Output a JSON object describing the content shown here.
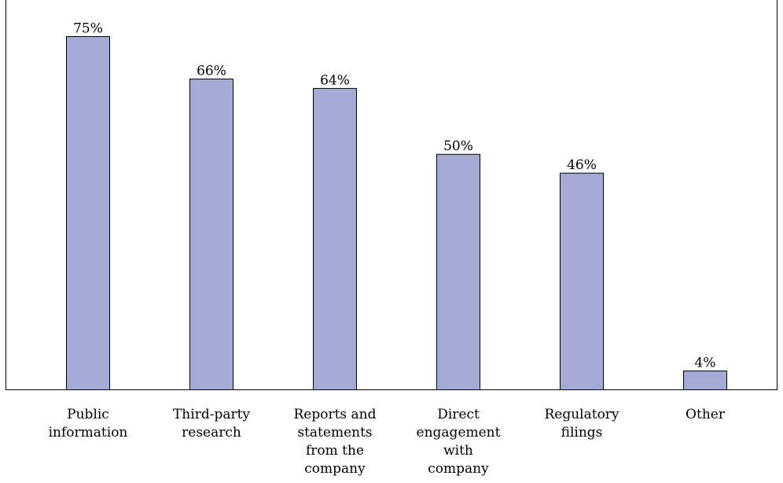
{
  "chart_data": {
    "type": "bar",
    "categories": [
      [
        "Public",
        "information"
      ],
      [
        "Third-party",
        "research"
      ],
      [
        "Reports and",
        "statements",
        "from the",
        "company"
      ],
      [
        "Direct",
        "engagement",
        "with",
        "company"
      ],
      [
        "Regulatory",
        "filings"
      ],
      [
        "Other"
      ]
    ],
    "values": [
      75,
      66,
      64,
      50,
      46,
      4
    ],
    "data_labels": [
      "75%",
      "66%",
      "64%",
      "50%",
      "46%",
      "4%"
    ],
    "ylim": [
      0,
      80
    ],
    "grid": false,
    "legend": "none",
    "title": "",
    "xlabel": "",
    "ylabel": ""
  },
  "colors": {
    "bar_fill": "#a3aad6",
    "bar_stroke": "#000000",
    "axis": "#000000",
    "text": "#000000"
  }
}
